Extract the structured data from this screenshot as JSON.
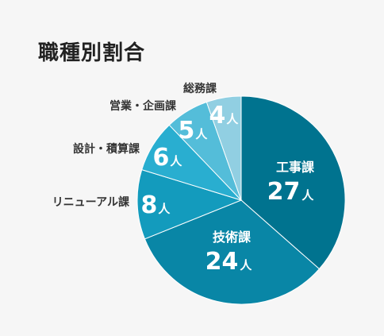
{
  "chart_data": {
    "type": "pie",
    "title": "職種別割合",
    "unit": "人",
    "slices": [
      {
        "label": "工事課",
        "value": 27,
        "color": "#00738f"
      },
      {
        "label": "技術課",
        "value": 24,
        "color": "#0986a6"
      },
      {
        "label": "リニューアル課",
        "value": 8,
        "color": "#139bbd"
      },
      {
        "label": "設計・積算課",
        "value": 6,
        "color": "#29aed0"
      },
      {
        "label": "営業・企画課",
        "value": 5,
        "color": "#54bdd9"
      },
      {
        "label": "総務課",
        "value": 4,
        "color": "#91cfe2"
      }
    ]
  }
}
